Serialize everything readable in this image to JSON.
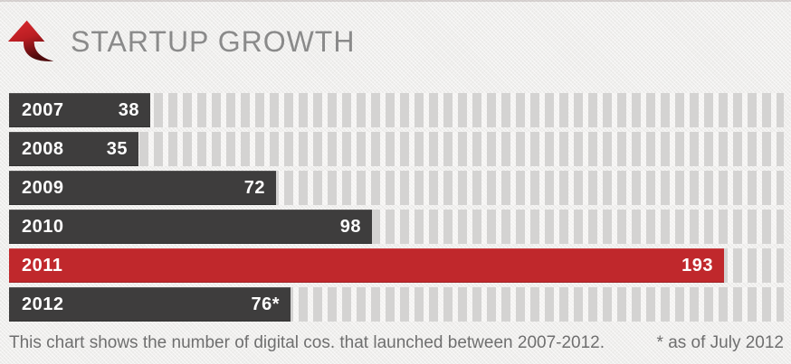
{
  "header": {
    "title": "STARTUP GROWTH",
    "icon": "growth-arrow-icon"
  },
  "chart_data": {
    "type": "bar",
    "orientation": "horizontal",
    "title": "STARTUP GROWTH",
    "categories": [
      "2007",
      "2008",
      "2009",
      "2010",
      "2011",
      "2012"
    ],
    "values": [
      38,
      35,
      72,
      98,
      193,
      76
    ],
    "value_labels": [
      "38",
      "35",
      "72",
      "98",
      "193",
      "76*"
    ],
    "highlight_index": 4,
    "xlim": [
      0,
      209
    ],
    "grid": false,
    "legend": false,
    "annotation": "* as of July 2012"
  },
  "colors": {
    "bar": "#3e3d3d",
    "highlight": "#c0282c",
    "stripe": "#d4d3d2",
    "background": "#f1f0ee",
    "title_text": "#8a8a8a",
    "caption_text": "#6f6f6f",
    "bar_text": "#ffffff",
    "arrow_red": "#c42127"
  },
  "caption": {
    "text": "This chart shows the number of digital cos. that launched between 2007-2012.",
    "footnote": "* as of July 2012"
  }
}
